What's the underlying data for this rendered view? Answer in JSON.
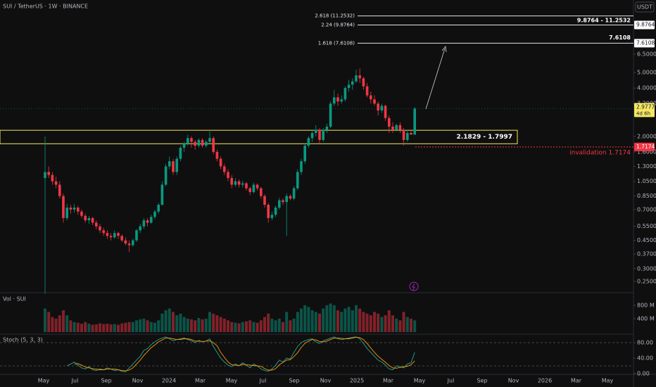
{
  "chart_data": {
    "type": "candlestick",
    "title": "SUI / TetherUS · 1W · BINANCE",
    "currency": "USDT",
    "log_scale": true,
    "ylim": [
      0.2146,
      14.14
    ],
    "yticks": [
      {
        "value": 0.25,
        "label": "0.2500"
      },
      {
        "value": 0.3,
        "label": "0.3000"
      },
      {
        "value": 0.37,
        "label": "0.3700"
      },
      {
        "value": 0.45,
        "label": "0.4500"
      },
      {
        "value": 0.55,
        "label": "0.5500"
      },
      {
        "value": 0.7,
        "label": "0.7000"
      },
      {
        "value": 0.85,
        "label": "0.8500"
      },
      {
        "value": 1.05,
        "label": "1.0500"
      },
      {
        "value": 1.3,
        "label": "1.3000"
      },
      {
        "value": 1.6,
        "label": "1.6000"
      },
      {
        "value": 2,
        "label": "2.0000"
      },
      {
        "value": 3.2,
        "label": "3.2000"
      },
      {
        "value": 4,
        "label": "4.0000"
      },
      {
        "value": 5,
        "label": "5.0000"
      },
      {
        "value": 6.5,
        "label": "6.5000"
      }
    ],
    "xtick_labels": [
      "May",
      "Jul",
      "Sep",
      "Nov",
      "2024",
      "Mar",
      "May",
      "Jul",
      "Sep",
      "Nov",
      "2025",
      "Mar",
      "May",
      "Jul",
      "Sep",
      "Nov",
      "2026",
      "Mar",
      "May"
    ],
    "up_color": "#089981",
    "down_color": "#f23645",
    "candles": [
      [
        1.1,
        2.0,
        0.21,
        1.2
      ],
      [
        1.2,
        1.3,
        1.1,
        1.15
      ],
      [
        1.15,
        1.2,
        1.0,
        1.05
      ],
      [
        1.05,
        1.12,
        0.95,
        1.0
      ],
      [
        1.0,
        1.05,
        0.82,
        0.85
      ],
      [
        0.85,
        0.88,
        0.58,
        0.62
      ],
      [
        0.62,
        0.76,
        0.6,
        0.72
      ],
      [
        0.72,
        0.75,
        0.66,
        0.7
      ],
      [
        0.7,
        0.76,
        0.67,
        0.72
      ],
      [
        0.72,
        0.74,
        0.65,
        0.68
      ],
      [
        0.68,
        0.7,
        0.62,
        0.64
      ],
      [
        0.64,
        0.66,
        0.58,
        0.6
      ],
      [
        0.6,
        0.64,
        0.57,
        0.62
      ],
      [
        0.62,
        0.63,
        0.56,
        0.58
      ],
      [
        0.58,
        0.6,
        0.53,
        0.55
      ],
      [
        0.55,
        0.57,
        0.5,
        0.52
      ],
      [
        0.52,
        0.54,
        0.48,
        0.5
      ],
      [
        0.5,
        0.52,
        0.46,
        0.48
      ],
      [
        0.48,
        0.5,
        0.45,
        0.47
      ],
      [
        0.47,
        0.52,
        0.46,
        0.5
      ],
      [
        0.5,
        0.51,
        0.46,
        0.48
      ],
      [
        0.48,
        0.49,
        0.44,
        0.45
      ],
      [
        0.45,
        0.47,
        0.42,
        0.43
      ],
      [
        0.43,
        0.45,
        0.38,
        0.42
      ],
      [
        0.42,
        0.46,
        0.41,
        0.45
      ],
      [
        0.45,
        0.53,
        0.44,
        0.52
      ],
      [
        0.52,
        0.57,
        0.5,
        0.55
      ],
      [
        0.55,
        0.62,
        0.53,
        0.6
      ],
      [
        0.6,
        0.62,
        0.55,
        0.58
      ],
      [
        0.58,
        0.65,
        0.57,
        0.63
      ],
      [
        0.63,
        0.7,
        0.61,
        0.68
      ],
      [
        0.68,
        0.77,
        0.66,
        0.75
      ],
      [
        0.75,
        1.05,
        0.74,
        1.0
      ],
      [
        1.0,
        1.35,
        0.98,
        1.3
      ],
      [
        1.3,
        1.5,
        1.25,
        1.4
      ],
      [
        1.4,
        1.45,
        1.15,
        1.2
      ],
      [
        1.2,
        1.5,
        1.15,
        1.45
      ],
      [
        1.45,
        1.75,
        1.4,
        1.7
      ],
      [
        1.7,
        1.85,
        1.6,
        1.8
      ],
      [
        1.8,
        2.05,
        1.75,
        1.95
      ],
      [
        1.95,
        2.0,
        1.7,
        1.85
      ],
      [
        1.85,
        1.9,
        1.65,
        1.75
      ],
      [
        1.75,
        1.95,
        1.7,
        1.9
      ],
      [
        1.9,
        1.95,
        1.7,
        1.75
      ],
      [
        1.75,
        1.9,
        1.7,
        1.85
      ],
      [
        1.85,
        2.15,
        1.8,
        1.95
      ],
      [
        1.95,
        2.0,
        1.55,
        1.6
      ],
      [
        1.6,
        1.65,
        1.4,
        1.45
      ],
      [
        1.45,
        1.5,
        1.25,
        1.3
      ],
      [
        1.3,
        1.35,
        1.15,
        1.2
      ],
      [
        1.2,
        1.25,
        1.05,
        1.1
      ],
      [
        1.1,
        1.15,
        0.95,
        1.0
      ],
      [
        1.0,
        1.1,
        0.97,
        1.05
      ],
      [
        1.05,
        1.08,
        0.96,
        1.0
      ],
      [
        1.0,
        1.06,
        0.96,
        1.02
      ],
      [
        1.02,
        1.04,
        0.92,
        0.95
      ],
      [
        0.95,
        0.97,
        0.86,
        0.9
      ],
      [
        0.9,
        1.03,
        0.88,
        1.0
      ],
      [
        1.0,
        1.02,
        0.92,
        0.95
      ],
      [
        0.95,
        0.97,
        0.82,
        0.85
      ],
      [
        0.85,
        0.87,
        0.72,
        0.75
      ],
      [
        0.75,
        0.77,
        0.58,
        0.62
      ],
      [
        0.62,
        0.68,
        0.6,
        0.65
      ],
      [
        0.65,
        0.74,
        0.63,
        0.72
      ],
      [
        0.72,
        0.83,
        0.7,
        0.8
      ],
      [
        0.8,
        0.82,
        0.75,
        0.78
      ],
      [
        0.78,
        0.88,
        0.48,
        0.85
      ],
      [
        0.85,
        0.87,
        0.8,
        0.82
      ],
      [
        0.82,
        0.98,
        0.8,
        0.95
      ],
      [
        0.95,
        1.25,
        0.93,
        1.2
      ],
      [
        1.2,
        1.45,
        1.15,
        1.4
      ],
      [
        1.4,
        1.8,
        1.35,
        1.75
      ],
      [
        1.75,
        2.0,
        1.7,
        1.95
      ],
      [
        1.95,
        2.15,
        1.85,
        2.1
      ],
      [
        2.1,
        2.35,
        2.0,
        2.2
      ],
      [
        2.2,
        2.25,
        1.8,
        1.9
      ],
      [
        1.9,
        2.25,
        1.85,
        2.2
      ],
      [
        2.2,
        2.4,
        2.1,
        2.3
      ],
      [
        2.3,
        3.3,
        2.25,
        3.2
      ],
      [
        3.2,
        3.9,
        3.1,
        3.5
      ],
      [
        3.5,
        3.7,
        3.1,
        3.3
      ],
      [
        3.3,
        3.6,
        3.2,
        3.4
      ],
      [
        3.4,
        4.1,
        3.3,
        4.0
      ],
      [
        4.0,
        4.5,
        3.8,
        4.2
      ],
      [
        4.2,
        4.6,
        3.9,
        4.4
      ],
      [
        4.4,
        5.2,
        4.3,
        4.8
      ],
      [
        4.8,
        5.3,
        4.3,
        4.6
      ],
      [
        4.6,
        4.7,
        3.9,
        4.1
      ],
      [
        4.1,
        4.3,
        3.5,
        3.6
      ],
      [
        3.6,
        3.8,
        3.2,
        3.4
      ],
      [
        3.4,
        3.6,
        3.1,
        3.2
      ],
      [
        3.2,
        3.3,
        2.7,
        2.9
      ],
      [
        2.9,
        3.2,
        2.8,
        3.1
      ],
      [
        3.1,
        3.15,
        2.5,
        2.6
      ],
      [
        2.6,
        2.7,
        2.1,
        2.3
      ],
      [
        2.3,
        2.45,
        2.1,
        2.2
      ],
      [
        2.2,
        2.4,
        2.15,
        2.35
      ],
      [
        2.35,
        2.45,
        2.1,
        2.2
      ],
      [
        2.2,
        2.25,
        1.75,
        1.9
      ],
      [
        1.9,
        2.2,
        1.85,
        2.1
      ],
      [
        2.1,
        2.2,
        2.05,
        2.05
      ],
      [
        2.05,
        3.05,
        2.05,
        2.9777
      ]
    ],
    "fib_levels": [
      {
        "label": "2.618 (11.2532)",
        "value": 11.2532
      },
      {
        "label": "2.24 (9.8764)",
        "value": 9.8764
      },
      {
        "label": "1.618 (7.6108)",
        "value": 7.6108
      }
    ],
    "fib_range_label": "9.8764 - 11.2532",
    "target": 7.6108,
    "price_tags": [
      {
        "value": 9.8764,
        "color": "#ffffff"
      },
      {
        "value": 7.6108,
        "color": "#ffffff"
      },
      {
        "value": 1.7174,
        "color": "#f23645"
      }
    ],
    "last_price": 2.9777,
    "countdown": "4d 6h",
    "zone": {
      "label": "2.1829 - 1.7997",
      "top": 2.1829,
      "bottom": 1.7997,
      "color": "#f5e663"
    },
    "invalidation": {
      "label": "invalidation 1.7174",
      "value": 1.7174,
      "color": "#f23645"
    },
    "volume": {
      "title": "Vol · SUI",
      "ylim": [
        0,
        1130
      ],
      "yticks": [
        {
          "value": 800,
          "label": "800 M"
        },
        {
          "value": 400,
          "label": "400 M"
        }
      ],
      "values": [
        700,
        600,
        450,
        400,
        500,
        650,
        500,
        350,
        300,
        280,
        250,
        300,
        250,
        220,
        230,
        260,
        240,
        250,
        230,
        240,
        220,
        260,
        280,
        300,
        300,
        350,
        380,
        400,
        350,
        300,
        280,
        350,
        550,
        650,
        700,
        600,
        500,
        550,
        450,
        400,
        380,
        350,
        420,
        380,
        400,
        600,
        550,
        500,
        450,
        400,
        350,
        300,
        280,
        260,
        300,
        320,
        350,
        300,
        280,
        350,
        450,
        550,
        400,
        350,
        400,
        300,
        600,
        350,
        400,
        600,
        700,
        800,
        750,
        650,
        600,
        550,
        700,
        800,
        850,
        800,
        650,
        600,
        700,
        750,
        650,
        800,
        700,
        600,
        550,
        500,
        600,
        550,
        450,
        500,
        650,
        500,
        400,
        350,
        600,
        450,
        400,
        350
      ]
    },
    "stoch": {
      "title": "Stoch (5, 3, 3)",
      "ylim": [
        0,
        100
      ],
      "yticks": [
        {
          "value": 80,
          "label": "80.00"
        },
        {
          "value": 40,
          "label": "40.00"
        },
        {
          "value": 0,
          "label": "0.00"
        }
      ],
      "bands": [
        80,
        20
      ],
      "series": [
        {
          "color": "#26a69a",
          "values": [
            null,
            null,
            null,
            null,
            null,
            null,
            20,
            25,
            30,
            22,
            15,
            12,
            18,
            10,
            8,
            12,
            10,
            15,
            12,
            8,
            10,
            6,
            5,
            15,
            25,
            35,
            45,
            60,
            65,
            75,
            82,
            88,
            92,
            95,
            90,
            85,
            88,
            90,
            92,
            88,
            85,
            80,
            86,
            82,
            84,
            90,
            70,
            55,
            40,
            30,
            22,
            18,
            25,
            20,
            28,
            22,
            15,
            25,
            20,
            12,
            8,
            6,
            12,
            22,
            35,
            30,
            40,
            38,
            55,
            70,
            80,
            85,
            88,
            90,
            82,
            78,
            85,
            88,
            92,
            95,
            90,
            88,
            90,
            92,
            94,
            95,
            90,
            78,
            65,
            55,
            45,
            35,
            30,
            22,
            12,
            10,
            20,
            18,
            15,
            25,
            28,
            55
          ]
        },
        {
          "color": "#ff9800",
          "values": [
            null,
            null,
            null,
            null,
            null,
            null,
            null,
            null,
            25,
            26,
            22,
            17,
            15,
            13,
            12,
            10,
            10,
            12,
            12,
            12,
            10,
            8,
            7,
            9,
            15,
            25,
            35,
            47,
            57,
            67,
            74,
            82,
            87,
            92,
            92,
            90,
            88,
            88,
            90,
            90,
            88,
            84,
            84,
            83,
            84,
            85,
            80,
            72,
            55,
            42,
            30,
            23,
            22,
            21,
            24,
            23,
            22,
            21,
            20,
            19,
            13,
            9,
            9,
            13,
            23,
            29,
            35,
            36,
            44,
            54,
            68,
            78,
            84,
            88,
            87,
            83,
            82,
            84,
            88,
            92,
            92,
            91,
            90,
            90,
            92,
            94,
            93,
            88,
            78,
            66,
            55,
            45,
            37,
            29,
            21,
            15,
            14,
            16,
            18,
            19,
            23,
            33
          ]
        }
      ]
    }
  }
}
